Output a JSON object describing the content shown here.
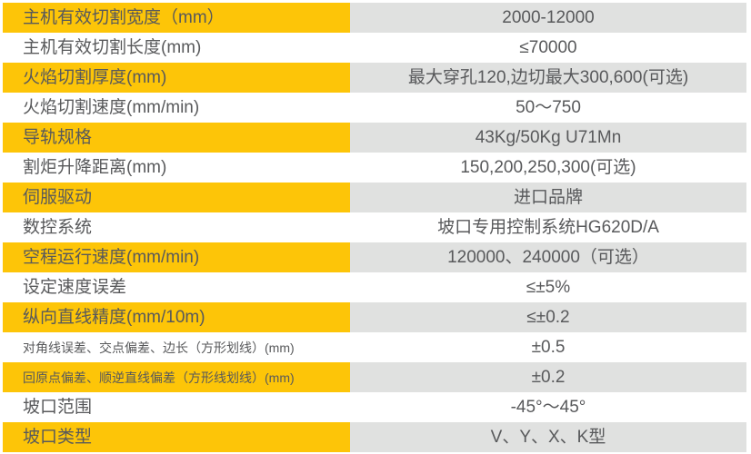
{
  "table_name": "cutting-machine-specifications",
  "colors": {
    "highlight_yellow": "#fdc508",
    "value_gray": "#e0e1e0",
    "text": "#58595b",
    "background": "#ffffff"
  },
  "rows": [
    {
      "label": "主机有效切割宽度（mm）",
      "value": "2000-12000",
      "highlighted": true,
      "small": false
    },
    {
      "label": "主机有效切割长度(mm)",
      "value": "≤70000",
      "highlighted": false,
      "small": false
    },
    {
      "label": "火焰切割厚度(mm)",
      "value": "最大穿孔120,边切最大300,600(可选)",
      "highlighted": true,
      "small": false
    },
    {
      "label": "火焰切割速度(mm/min)",
      "value": "50～750",
      "highlighted": false,
      "small": false
    },
    {
      "label": "导轨规格",
      "value": "43Kg/50Kg U71Mn",
      "highlighted": true,
      "small": false
    },
    {
      "label": "割炬升降距离(mm)",
      "value": "150,200,250,300(可选)",
      "highlighted": false,
      "small": false
    },
    {
      "label": "伺服驱动",
      "value": "进口品牌",
      "highlighted": true,
      "small": false
    },
    {
      "label": "数控系统",
      "value": "坡口专用控制系统HG620D/A",
      "highlighted": false,
      "small": false
    },
    {
      "label": "空程运行速度(mm/min)",
      "value": "120000、240000（可选）",
      "highlighted": true,
      "small": false
    },
    {
      "label": "设定速度误差",
      "value": "≤±5%",
      "highlighted": false,
      "small": false
    },
    {
      "label": "纵向直线精度(mm/10m)",
      "value": "≤±0.2",
      "highlighted": true,
      "small": false
    },
    {
      "label": "对角线误差、交点偏差、边长（方形划线）(mm)",
      "value": "±0.5",
      "highlighted": false,
      "small": true
    },
    {
      "label": "回原点偏差、顺逆直线偏差（方形线划线）(mm)",
      "value": "±0.2",
      "highlighted": true,
      "small": true
    },
    {
      "label": "坡口范围",
      "value": "-45°～45°",
      "highlighted": false,
      "small": false
    },
    {
      "label": "坡口类型",
      "value": "V、Y、X、K型",
      "highlighted": true,
      "small": false
    }
  ]
}
